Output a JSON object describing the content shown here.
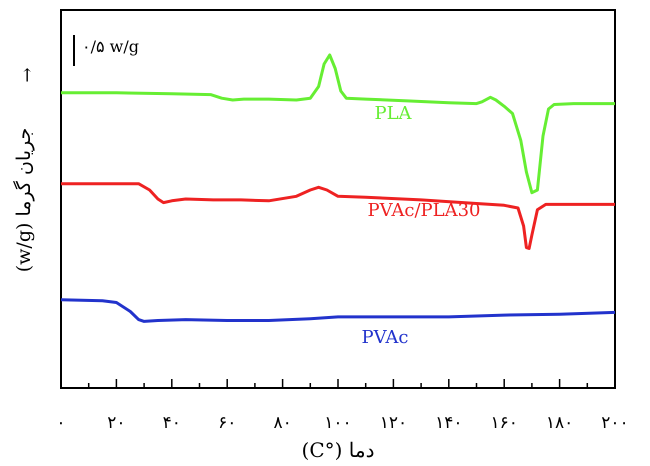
{
  "chart_data": {
    "type": "line",
    "title": "",
    "xlabel": "دما (°C)",
    "ylabel": "جریان گرما (w/g)",
    "ylabel_arrow": "→",
    "scale_bar_label": "۰/۵ w/g",
    "xlim": [
      0,
      200
    ],
    "x_ticks": [
      {
        "value": 0,
        "label": "۰"
      },
      {
        "value": 20,
        "label": "۲۰"
      },
      {
        "value": 40,
        "label": "۴۰"
      },
      {
        "value": 60,
        "label": "۶۰"
      },
      {
        "value": 80,
        "label": "۸۰"
      },
      {
        "value": 100,
        "label": "۱۰۰"
      },
      {
        "value": 120,
        "label": "۱۲۰"
      },
      {
        "value": 140,
        "label": "۱۴۰"
      },
      {
        "value": 160,
        "label": "۱۶۰"
      },
      {
        "value": 180,
        "label": "۱۸۰"
      },
      {
        "value": 200,
        "label": "۲۰۰"
      }
    ],
    "y_units": "w/g (relative, stacked)",
    "ylim": [
      0,
      4.2
    ],
    "grid": false,
    "series": [
      {
        "name": "PLA",
        "color": "#66ee33",
        "points": [
          [
            0,
            3.28
          ],
          [
            20,
            3.28
          ],
          [
            40,
            3.27
          ],
          [
            54,
            3.26
          ],
          [
            58,
            3.22
          ],
          [
            62,
            3.2
          ],
          [
            66,
            3.21
          ],
          [
            75,
            3.21
          ],
          [
            85,
            3.2
          ],
          [
            90,
            3.22
          ],
          [
            93,
            3.35
          ],
          [
            95,
            3.6
          ],
          [
            97,
            3.7
          ],
          [
            99,
            3.55
          ],
          [
            101,
            3.3
          ],
          [
            103,
            3.22
          ],
          [
            110,
            3.21
          ],
          [
            125,
            3.19
          ],
          [
            140,
            3.17
          ],
          [
            150,
            3.16
          ],
          [
            152,
            3.18
          ],
          [
            155,
            3.23
          ],
          [
            157,
            3.2
          ],
          [
            160,
            3.13
          ],
          [
            163,
            3.05
          ],
          [
            166,
            2.75
          ],
          [
            168,
            2.4
          ],
          [
            170,
            2.17
          ],
          [
            172,
            2.2
          ],
          [
            174,
            2.8
          ],
          [
            176,
            3.1
          ],
          [
            178,
            3.15
          ],
          [
            185,
            3.16
          ],
          [
            200,
            3.16
          ]
        ]
      },
      {
        "name": "PVAc/PLA30",
        "color": "#ee2222",
        "points": [
          [
            0,
            2.27
          ],
          [
            20,
            2.27
          ],
          [
            28,
            2.27
          ],
          [
            32,
            2.2
          ],
          [
            35,
            2.1
          ],
          [
            37,
            2.06
          ],
          [
            40,
            2.08
          ],
          [
            45,
            2.1
          ],
          [
            55,
            2.09
          ],
          [
            65,
            2.09
          ],
          [
            75,
            2.08
          ],
          [
            85,
            2.13
          ],
          [
            90,
            2.2
          ],
          [
            93,
            2.23
          ],
          [
            96,
            2.2
          ],
          [
            100,
            2.13
          ],
          [
            110,
            2.12
          ],
          [
            130,
            2.09
          ],
          [
            150,
            2.05
          ],
          [
            160,
            2.03
          ],
          [
            165,
            2.0
          ],
          [
            167,
            1.8
          ],
          [
            168,
            1.56
          ],
          [
            169,
            1.55
          ],
          [
            170,
            1.7
          ],
          [
            172,
            1.98
          ],
          [
            175,
            2.04
          ],
          [
            185,
            2.04
          ],
          [
            200,
            2.04
          ]
        ]
      },
      {
        "name": "PVAc",
        "color": "#2233cc",
        "points": [
          [
            0,
            0.98
          ],
          [
            15,
            0.97
          ],
          [
            20,
            0.95
          ],
          [
            25,
            0.85
          ],
          [
            28,
            0.76
          ],
          [
            30,
            0.74
          ],
          [
            35,
            0.75
          ],
          [
            45,
            0.76
          ],
          [
            60,
            0.75
          ],
          [
            75,
            0.75
          ],
          [
            90,
            0.77
          ],
          [
            100,
            0.79
          ],
          [
            120,
            0.79
          ],
          [
            140,
            0.79
          ],
          [
            160,
            0.81
          ],
          [
            180,
            0.82
          ],
          [
            200,
            0.84
          ]
        ]
      }
    ],
    "labels": [
      {
        "text": "PLA",
        "series": 0,
        "color": "#66ee33"
      },
      {
        "text": "PVAc/PLA30",
        "series": 1,
        "color": "#ee2222"
      },
      {
        "text": "PVAc",
        "series": 2,
        "color": "#2233cc"
      }
    ]
  }
}
